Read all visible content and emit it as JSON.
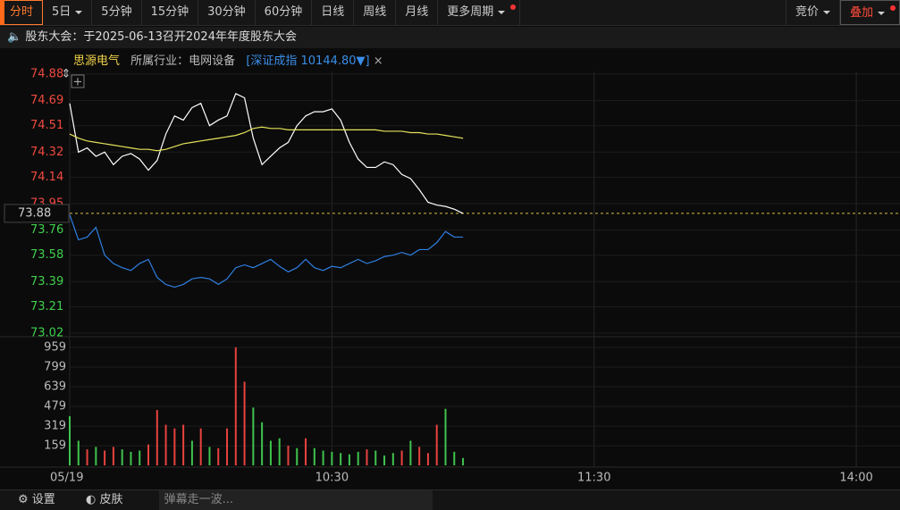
{
  "toolbar": {
    "tabs": [
      "分时",
      "5日",
      "5分钟",
      "15分钟",
      "30分钟",
      "60分钟",
      "日线",
      "周线",
      "月线",
      "更多周期"
    ],
    "right": [
      "竞价",
      "叠加"
    ]
  },
  "notice": "股东大会：于2025-06-13召开2024年年度股东大会",
  "header": {
    "name": "思源电气",
    "industry": "所属行业：电网设备",
    "index": "[深证成指 10144.80▼]",
    "close": "×"
  },
  "footer": {
    "settings": "设置",
    "skin": "皮肤",
    "danmaku": "弹幕走一波..."
  },
  "chart_data": [
    {
      "type": "line",
      "x": [
        0,
        2,
        4,
        6,
        8,
        10,
        12,
        14,
        16,
        18,
        20,
        22,
        24,
        26,
        28,
        30,
        32,
        34,
        36,
        38,
        40,
        42,
        44,
        46,
        48,
        50,
        52,
        54,
        56,
        58,
        60,
        62,
        64,
        66,
        68,
        70,
        72,
        74,
        76,
        78,
        80,
        82,
        84,
        86,
        88,
        90
      ],
      "xlim": [
        0,
        190
      ],
      "xticks": [
        {
          "value": 0,
          "label": "05/19"
        },
        {
          "value": 60,
          "label": "10:30"
        },
        {
          "value": 120,
          "label": "11:30"
        },
        {
          "value": 180,
          "label": "14:00"
        }
      ],
      "ylim": [
        73.02,
        74.88
      ],
      "yticks": [
        74.88,
        74.69,
        74.51,
        74.32,
        74.14,
        73.95,
        73.76,
        73.58,
        73.39,
        73.21,
        73.02
      ],
      "current_price": 73.88,
      "series": [
        {
          "color": "#ffffff",
          "values": [
            74.67,
            74.32,
            74.35,
            74.29,
            74.32,
            74.23,
            74.29,
            74.31,
            74.27,
            74.19,
            74.26,
            74.45,
            74.58,
            74.55,
            74.64,
            74.67,
            74.51,
            74.55,
            74.58,
            74.74,
            74.71,
            74.42,
            74.23,
            74.29,
            74.35,
            74.39,
            74.51,
            74.58,
            74.61,
            74.61,
            74.63,
            74.55,
            74.39,
            74.27,
            74.21,
            74.21,
            74.25,
            74.23,
            74.16,
            74.13,
            74.05,
            73.96,
            73.94,
            73.93,
            73.91,
            73.88
          ]
        },
        {
          "color": "#e6e35a",
          "values": [
            74.45,
            74.42,
            74.4,
            74.39,
            74.38,
            74.37,
            74.36,
            74.35,
            74.34,
            74.34,
            74.33,
            74.34,
            74.36,
            74.38,
            74.39,
            74.4,
            74.41,
            74.42,
            74.43,
            74.44,
            74.46,
            74.49,
            74.5,
            74.49,
            74.49,
            74.48,
            74.48,
            74.48,
            74.48,
            74.48,
            74.48,
            74.48,
            74.48,
            74.48,
            74.48,
            74.48,
            74.47,
            74.47,
            74.47,
            74.46,
            74.46,
            74.45,
            74.45,
            74.44,
            74.43,
            74.42
          ]
        },
        {
          "color": "#2f7fe0",
          "values": [
            73.87,
            73.69,
            73.71,
            73.78,
            73.58,
            73.52,
            73.49,
            73.47,
            73.52,
            73.55,
            73.42,
            73.37,
            73.35,
            73.37,
            73.41,
            73.42,
            73.41,
            73.37,
            73.41,
            73.49,
            73.51,
            73.49,
            73.52,
            73.55,
            73.5,
            73.46,
            73.49,
            73.55,
            73.49,
            73.47,
            73.5,
            73.49,
            73.52,
            73.55,
            73.52,
            73.54,
            73.57,
            73.58,
            73.6,
            73.58,
            73.62,
            73.62,
            73.67,
            73.75,
            73.71,
            73.71
          ]
        }
      ]
    },
    {
      "type": "bar",
      "x": [
        0,
        2,
        4,
        6,
        8,
        10,
        12,
        14,
        16,
        18,
        20,
        22,
        24,
        26,
        28,
        30,
        32,
        34,
        36,
        38,
        40,
        42,
        44,
        46,
        48,
        50,
        52,
        54,
        56,
        58,
        60,
        62,
        64,
        66,
        68,
        70,
        72,
        74,
        76,
        78,
        80,
        82,
        84,
        86,
        88,
        90
      ],
      "xlim": [
        0,
        190
      ],
      "ylim": [
        0,
        959
      ],
      "yticks": [
        159,
        319,
        479,
        639,
        799,
        959
      ],
      "values": [
        400,
        200,
        130,
        150,
        120,
        150,
        130,
        110,
        120,
        170,
        450,
        330,
        300,
        330,
        200,
        300,
        150,
        140,
        300,
        960,
        680,
        470,
        350,
        200,
        220,
        160,
        140,
        220,
        140,
        120,
        110,
        100,
        90,
        110,
        130,
        120,
        80,
        100,
        120,
        200,
        150,
        100,
        330,
        460,
        110,
        60
      ],
      "colors": [
        "#3fc34d",
        "#3fc34d",
        "#e8423f",
        "#3fc34d",
        "#e8423f",
        "#e8423f",
        "#3fc34d",
        "#3fc34d",
        "#3fc34d",
        "#e8423f",
        "#e8423f",
        "#e8423f",
        "#e8423f",
        "#e8423f",
        "#3fc34d",
        "#e8423f",
        "#3fc34d",
        "#e8423f",
        "#e8423f",
        "#e8423f",
        "#e8423f",
        "#3fc34d",
        "#3fc34d",
        "#3fc34d",
        "#3fc34d",
        "#e8423f",
        "#3fc34d",
        "#e8423f",
        "#3fc34d",
        "#3fc34d",
        "#3fc34d",
        "#3fc34d",
        "#3fc34d",
        "#3fc34d",
        "#e8423f",
        "#3fc34d",
        "#3fc34d",
        "#3fc34d",
        "#e8423f",
        "#3fc34d",
        "#e8423f",
        "#e8423f",
        "#e8423f",
        "#3fc34d",
        "#3fc34d",
        "#3fc34d"
      ]
    }
  ]
}
